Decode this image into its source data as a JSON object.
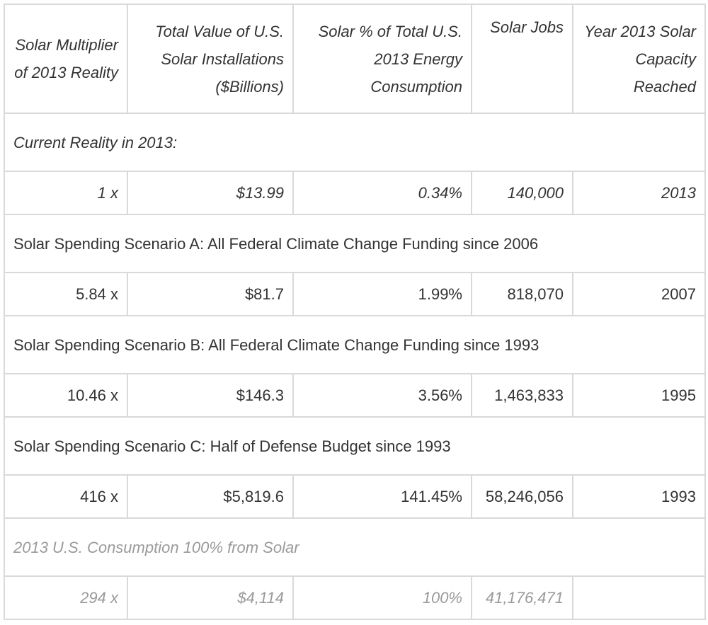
{
  "columns": [
    "Solar Multiplier of 2013 Reality",
    "Total Value of U.S. Solar Installations ($Billions)",
    "Solar % of Total U.S. 2013 Energy Consumption",
    "Solar Jobs",
    "Year 2013 Solar Capacity Reached"
  ],
  "sections": [
    {
      "title": "Current Reality in 2013:",
      "row": [
        "1 x",
        "$13.99",
        "0.34%",
        "140,000",
        "2013"
      ]
    },
    {
      "title": "Solar Spending Scenario A: All Federal Climate Change Funding since 2006",
      "row": [
        "5.84 x",
        "$81.7",
        "1.99%",
        "818,070",
        "2007"
      ]
    },
    {
      "title": "Solar Spending Scenario B: All Federal Climate Change Funding since 1993",
      "row": [
        "10.46 x",
        "$146.3",
        "3.56%",
        "1,463,833",
        "1995"
      ]
    },
    {
      "title": "Solar Spending Scenario C: Half of Defense Budget since 1993",
      "row": [
        "416 x",
        "$5,819.6",
        "141.45%",
        "58,246,056",
        "1993"
      ]
    },
    {
      "title": "2013 U.S. Consumption 100% from Solar",
      "row": [
        "294 x",
        "$4,114",
        "100%",
        "41,176,471",
        ""
      ]
    }
  ],
  "colors": {
    "text": "#333333",
    "muted": "#9a9a9a",
    "border": "#d9d9d9"
  }
}
